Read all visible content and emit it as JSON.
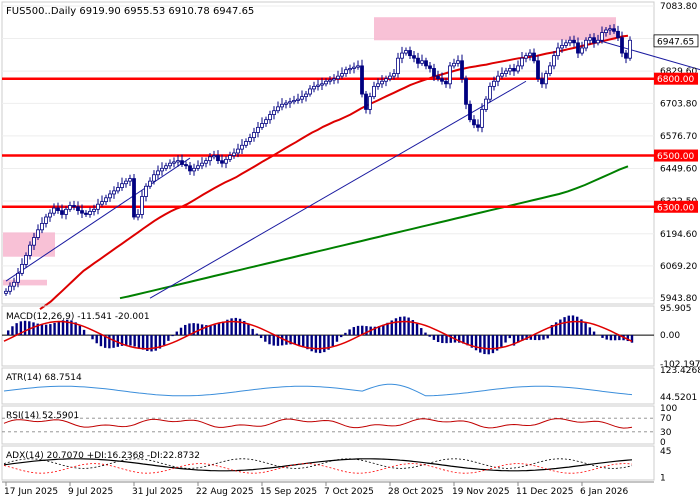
{
  "chart_data": {
    "type": "line",
    "panels": {
      "price": {
        "header": "FUS500..Daily  6919.90 6955.53 6910.78 6947.65",
        "series_name": "FUS500..Daily",
        "ohlc": {
          "open": 6919.9,
          "high": 6955.53,
          "low": 6910.78,
          "close": 6947.65
        },
        "ylim": [
          5943.8,
          7083.8
        ],
        "ticks": [
          "7083.80",
          "6956.70",
          "6829.60",
          "6703.80",
          "6576.70",
          "6449.60",
          "6322.50",
          "6194.60",
          "6069.20",
          "5943.80"
        ],
        "last_price": "6947.65",
        "levels": [
          {
            "label": "6800.00",
            "value": 6800
          },
          {
            "label": "6500.00",
            "value": 6500
          },
          {
            "label": "6300.00",
            "value": 6300
          }
        ],
        "candle_closes": [
          5970,
          5990,
          6005,
          6040,
          6075,
          6110,
          6150,
          6180,
          6210,
          6235,
          6260,
          6275,
          6295,
          6285,
          6270,
          6290,
          6305,
          6300,
          6285,
          6275,
          6270,
          6282,
          6290,
          6310,
          6320,
          6335,
          6350,
          6362,
          6375,
          6390,
          6400,
          6410,
          6260,
          6270,
          6340,
          6380,
          6400,
          6425,
          6440,
          6450,
          6460,
          6470,
          6475,
          6480,
          6465,
          6460,
          6440,
          6450,
          6460,
          6470,
          6480,
          6495,
          6500,
          6480,
          6470,
          6485,
          6500,
          6510,
          6525,
          6540,
          6555,
          6570,
          6590,
          6610,
          6625,
          6640,
          6660,
          6675,
          6690,
          6700,
          6705,
          6710,
          6715,
          6720,
          6730,
          6740,
          6760,
          6770,
          6775,
          6780,
          6790,
          6795,
          6800,
          6810,
          6820,
          6835,
          6840,
          6845,
          6850,
          6740,
          6680,
          6730,
          6770,
          6780,
          6790,
          6800,
          6810,
          6820,
          6880,
          6900,
          6910,
          6890,
          6880,
          6860,
          6870,
          6850,
          6840,
          6810,
          6800,
          6790,
          6780,
          6850,
          6860,
          6870,
          6800,
          6700,
          6640,
          6620,
          6610,
          6680,
          6720,
          6770,
          6790,
          6810,
          6820,
          6830,
          6840,
          6830,
          6850,
          6880,
          6890,
          6900,
          6870,
          6800,
          6780,
          6820,
          6850,
          6890,
          6920,
          6930,
          6940,
          6950,
          6940,
          6900,
          6920,
          6950,
          6960,
          6940,
          6950,
          6980,
          6990,
          6995,
          6985,
          6960,
          6900,
          6880,
          6950
        ],
        "ema_fast": [
          5900,
          5915,
          5930,
          5950,
          5970,
          5990,
          6010,
          6030,
          6050,
          6065,
          6080,
          6095,
          6110,
          6125,
          6140,
          6155,
          6170,
          6185,
          6200,
          6215,
          6230,
          6245,
          6258,
          6270,
          6282,
          6292,
          6300,
          6310,
          6322,
          6335,
          6348,
          6360,
          6372,
          6384,
          6395,
          6405,
          6415,
          6428,
          6440,
          6452,
          6465,
          6478,
          6490,
          6502,
          6515,
          6528,
          6540,
          6552,
          6565,
          6578,
          6590,
          6600,
          6612,
          6622,
          6632,
          6640,
          6650,
          6660,
          6672,
          6684,
          6695,
          6705,
          6715,
          6725,
          6735,
          6745,
          6755,
          6765,
          6775,
          6783,
          6791,
          6798,
          6805,
          6812,
          6818,
          6824,
          6830,
          6836,
          6840,
          6845,
          6848,
          6852,
          6855,
          6860,
          6864,
          6868,
          6872,
          6876,
          6880,
          6882,
          6885,
          6888,
          6893,
          6898,
          6902,
          6906,
          6910,
          6915,
          6920,
          6925,
          6930,
          6935,
          6940,
          6945,
          6950,
          6955,
          6960,
          6965,
          6968
        ],
        "ema_slow": [
          5943,
          5950,
          5958,
          5966,
          5974,
          5982,
          5990,
          5998,
          6006,
          6014,
          6022,
          6030,
          6038,
          6046,
          6054,
          6062,
          6070,
          6078,
          6086,
          6094,
          6102,
          6110,
          6118,
          6126,
          6134,
          6142,
          6150,
          6158,
          6166,
          6174,
          6182,
          6190,
          6198,
          6206,
          6214,
          6222,
          6230,
          6238,
          6246,
          6254,
          6262,
          6270,
          6278,
          6286,
          6294,
          6302,
          6310,
          6318,
          6326,
          6334,
          6342,
          6350,
          6360,
          6372,
          6385,
          6400,
          6415,
          6430,
          6445,
          6458
        ],
        "trendlines": [
          {
            "from": [
              0,
              6010
            ],
            "to": [
              46,
              6490
            ]
          },
          {
            "from": [
              36,
              5943
            ],
            "to": [
              130,
              6790
            ]
          },
          {
            "from": [
              148,
              6950
            ],
            "to": [
              188,
              6770
            ]
          }
        ]
      },
      "macd": {
        "label": "MACD(12,26,9) -11.541 -20.001",
        "ticks": [
          "95.905",
          "0.00",
          "-102.197"
        ],
        "ylim": [
          -102.197,
          95.905
        ]
      },
      "atr": {
        "label": "ATR(14) 68.7514",
        "ticks": [
          "123.4268",
          "44.5201"
        ],
        "ylim": [
          30,
          123.4268
        ]
      },
      "rsi": {
        "label": "RSI(14) 52.5901",
        "ticks": [
          "100",
          "70",
          "30",
          "0"
        ],
        "ylim": [
          0,
          100
        ]
      },
      "adx": {
        "label": "ADX(14) 20.7070 +DI:16.2368 -DI:22.8732",
        "ticks": [
          "45",
          "1"
        ],
        "ylim": [
          0,
          50
        ]
      }
    },
    "x_tick_labels": [
      "17 Jun 2025",
      "9 Jul 2025",
      "31 Jul 2025",
      "22 Aug 2025",
      "15 Sep 2025",
      "7 Oct 2025",
      "28 Oct 2025",
      "19 Nov 2025",
      "11 Dec 2025",
      "6 Jan 2026"
    ]
  },
  "colors": {
    "candle": "#000080",
    "level_line": "#ff0000",
    "ema_fast": "#dd0000",
    "ema_slow": "#008000",
    "zone": "#f7b6cf",
    "trendline": "#1a1aa0",
    "histogram": "#000080",
    "macd_signal": "#e00000",
    "atr": "#3b8edb",
    "rsi": "#c00000",
    "adx": "#000000",
    "pdi": "#000000",
    "mdi": "#ff0000",
    "label_bg": "#ff0000",
    "label_text": "#ffffff"
  }
}
